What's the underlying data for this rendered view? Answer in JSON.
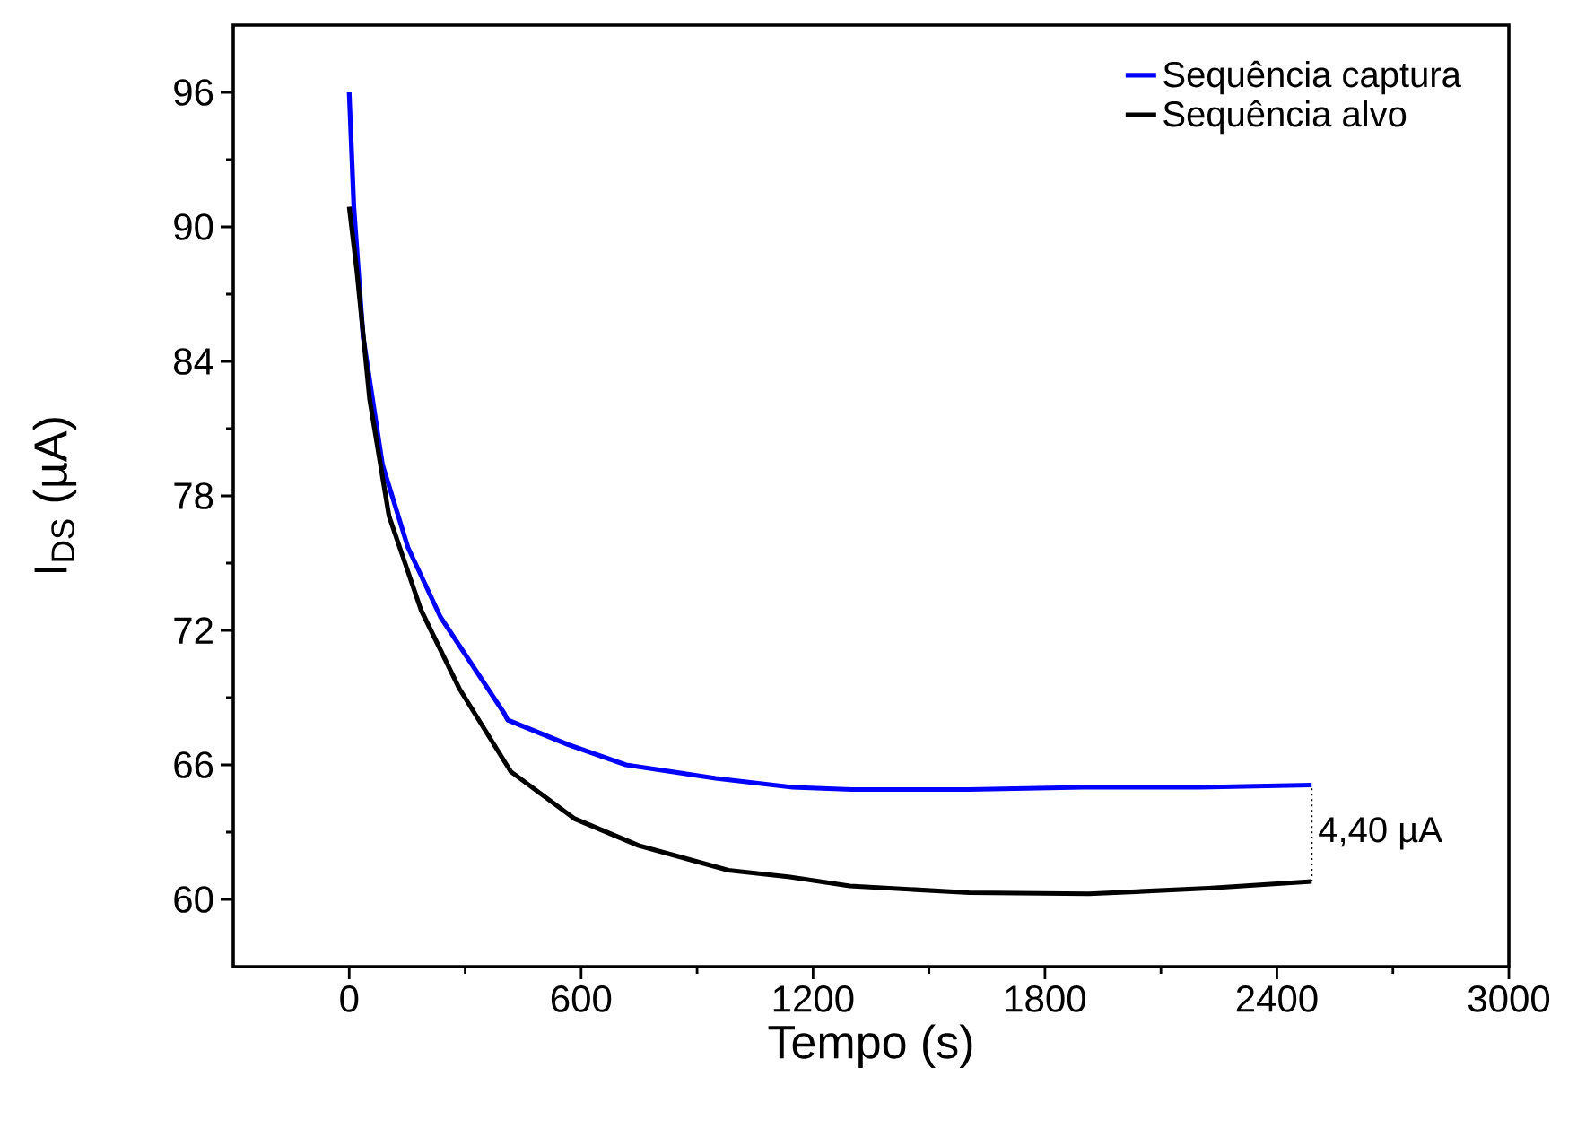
{
  "chart_data": {
    "type": "line",
    "xlabel": "Tempo (s)",
    "ylabel": "I$_{DS}$ (µA)",
    "xlim": [
      -300,
      3000
    ],
    "xticks": [
      0,
      600,
      1200,
      1800,
      2400,
      3000
    ],
    "ylim": [
      57,
      99
    ],
    "yticks": [
      60,
      66,
      72,
      78,
      84,
      90,
      96
    ],
    "legend": "top right",
    "marker": "none",
    "line_style": "solid",
    "series": [
      {
        "name": "Sequência captura",
        "color": "#0000ff",
        "x": [
          0,
          12,
          36,
          86,
          152,
          236,
          401,
          410,
          567,
          716,
          948,
          1147,
          1300,
          1603,
          1900,
          2200,
          2490
        ],
        "values": [
          96.0,
          90.9,
          85.1,
          79.4,
          75.7,
          72.6,
          68.3,
          68.0,
          66.9,
          66.0,
          65.4,
          65.0,
          64.9,
          64.9,
          65.0,
          65.0,
          65.1
        ]
      },
      {
        "name": "Sequência alvo",
        "color": "#000000",
        "x": [
          0,
          20,
          53,
          103,
          186,
          285,
          418,
          583,
          749,
          981,
          1140,
          1295,
          1604,
          1914,
          2223,
          2490
        ],
        "values": [
          90.9,
          88.0,
          82.3,
          77.1,
          72.9,
          69.4,
          65.7,
          63.6,
          62.4,
          61.3,
          61.0,
          60.6,
          60.3,
          60.25,
          60.5,
          60.8
        ]
      }
    ],
    "annotations": [
      "4,40 µA"
    ]
  }
}
